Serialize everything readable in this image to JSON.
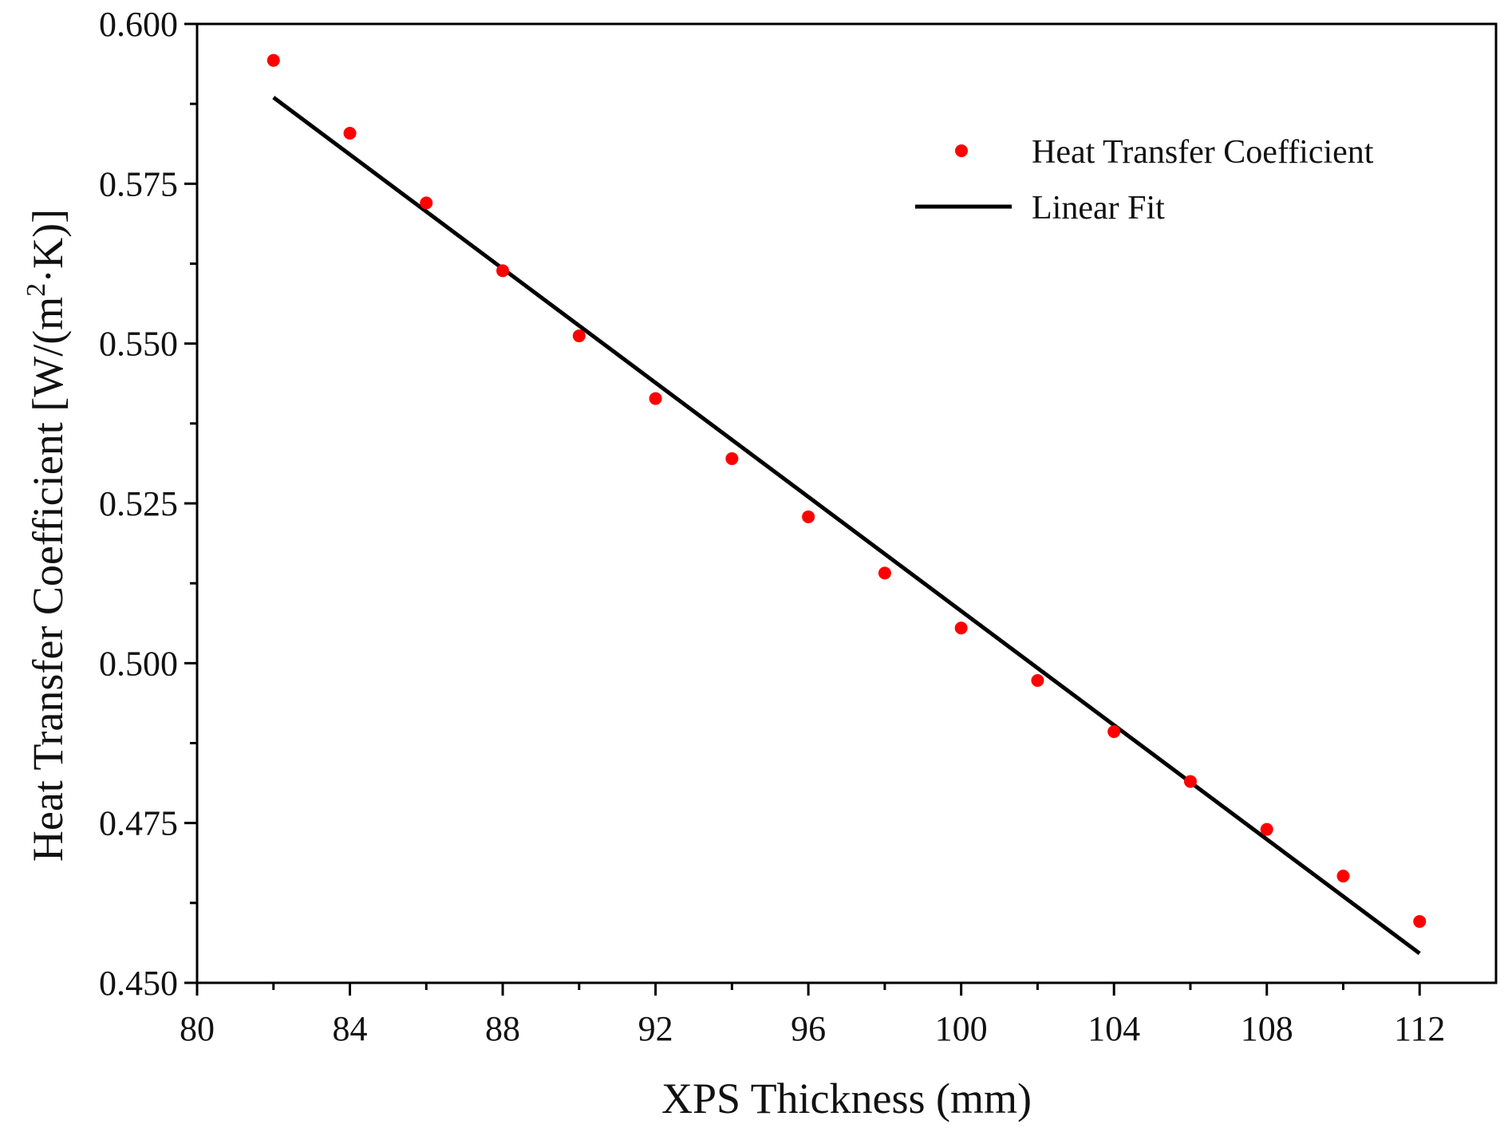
{
  "chart_data": {
    "type": "scatter",
    "title": "",
    "xlabel": "XPS Thickness (mm)",
    "ylabel_main": "Heat Transfer Coefficient [W/(m",
    "ylabel_sup": "2",
    "ylabel_tail": "·K)]",
    "xlim": [
      80,
      114
    ],
    "ylim": [
      0.45,
      0.6
    ],
    "xticks": [
      80,
      84,
      88,
      92,
      96,
      100,
      104,
      108,
      112
    ],
    "yticks": [
      0.45,
      0.475,
      0.5,
      0.525,
      0.55,
      0.575,
      0.6
    ],
    "ytick_labels": [
      "0.450",
      "0.475",
      "0.500",
      "0.525",
      "0.550",
      "0.575",
      "0.600"
    ],
    "series": [
      {
        "name": "Heat Transfer Coefficient",
        "kind": "scatter",
        "color": "#ff0000",
        "x": [
          82,
          84,
          86,
          88,
          90,
          92,
          94,
          96,
          98,
          100,
          102,
          104,
          106,
          108,
          110,
          112
        ],
        "y": [
          0.5943,
          0.5829,
          0.572,
          0.5614,
          0.5512,
          0.5414,
          0.532,
          0.5229,
          0.5141,
          0.5055,
          0.4973,
          0.4893,
          0.4815,
          0.474,
          0.4667,
          0.4596
        ]
      },
      {
        "name": "Linear Fit",
        "kind": "line",
        "color": "#000000",
        "x": [
          82,
          112
        ],
        "y": [
          0.5885,
          0.4546
        ]
      }
    ],
    "legend": {
      "position": "top-right",
      "entries": [
        "Heat Transfer Coefficient",
        "Linear Fit"
      ]
    }
  }
}
